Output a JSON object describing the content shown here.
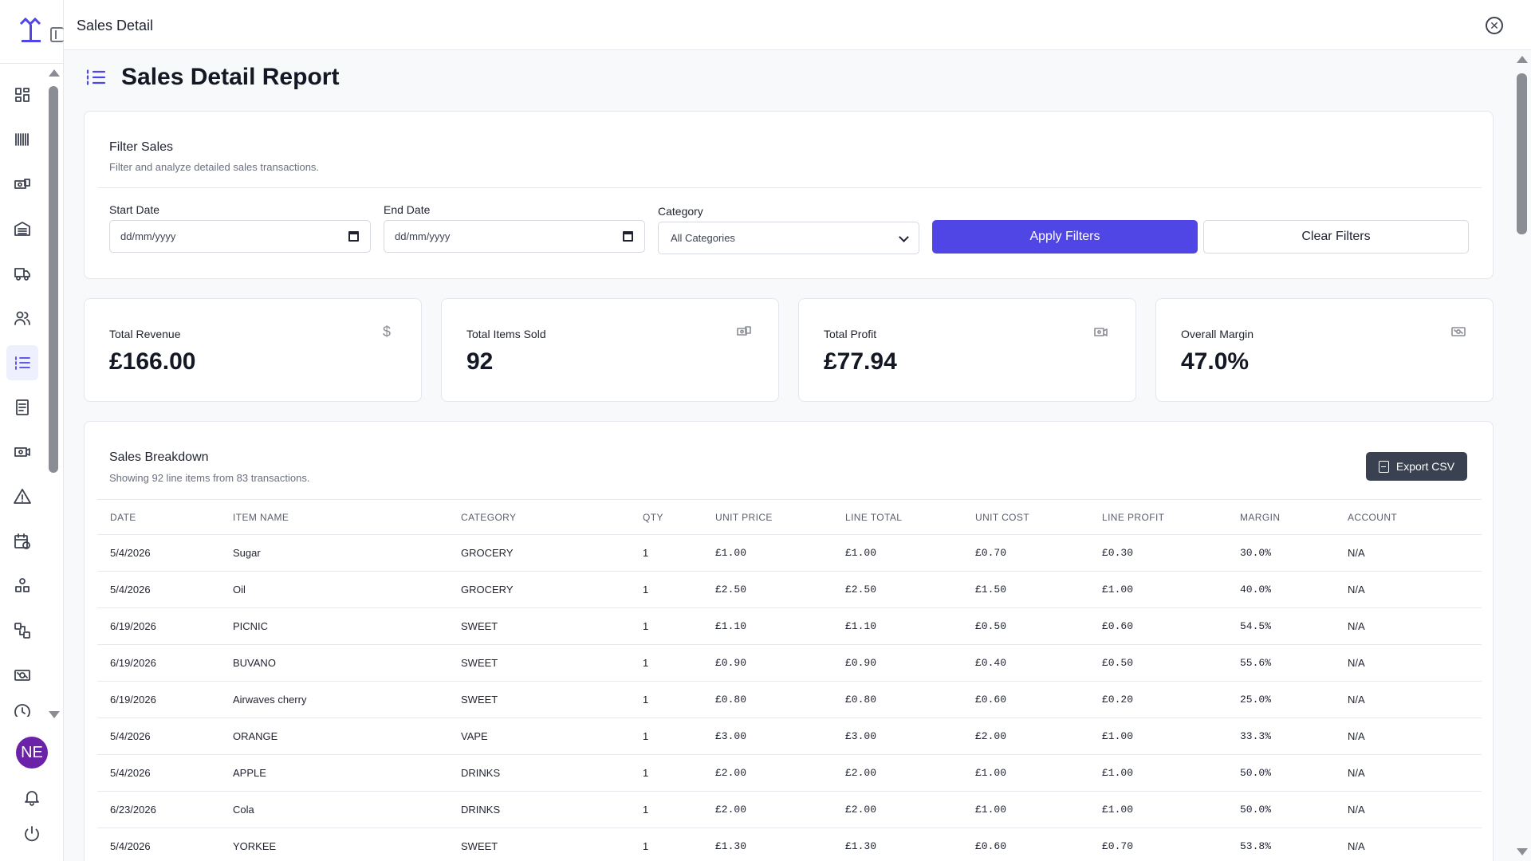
{
  "topbar": {
    "title": "Sales Detail"
  },
  "page": {
    "title": "Sales Detail Report"
  },
  "user": {
    "initials": "NE"
  },
  "filters": {
    "title": "Filter Sales",
    "subtitle": "Filter and analyze detailed sales transactions.",
    "start_label": "Start Date",
    "start_value": "dd/mm/yyyy",
    "end_label": "End Date",
    "end_value": "dd/mm/yyyy",
    "category_label": "Category",
    "category_value": "All Categories",
    "apply_label": "Apply Filters",
    "clear_label": "Clear Filters"
  },
  "stats": {
    "revenue_label": "Total Revenue",
    "revenue_value": "£166.00",
    "items_label": "Total Items Sold",
    "items_value": "92",
    "profit_label": "Total Profit",
    "profit_value": "£77.94",
    "margin_label": "Overall Margin",
    "margin_value": "47.0%"
  },
  "breakdown": {
    "title": "Sales Breakdown",
    "subtitle": "Showing 92 line items from 83 transactions.",
    "export_label": "Export CSV",
    "columns": [
      "DATE",
      "ITEM NAME",
      "CATEGORY",
      "QTY",
      "UNIT PRICE",
      "LINE TOTAL",
      "UNIT COST",
      "LINE PROFIT",
      "MARGIN",
      "ACCOUNT"
    ],
    "rows": [
      [
        "5/4/2026",
        "Sugar",
        "GROCERY",
        "1",
        "£1.00",
        "£1.00",
        "£0.70",
        "£0.30",
        "30.0%",
        "N/A"
      ],
      [
        "5/4/2026",
        "Oil",
        "GROCERY",
        "1",
        "£2.50",
        "£2.50",
        "£1.50",
        "£1.00",
        "40.0%",
        "N/A"
      ],
      [
        "6/19/2026",
        "PICNIC",
        "SWEET",
        "1",
        "£1.10",
        "£1.10",
        "£0.50",
        "£0.60",
        "54.5%",
        "N/A"
      ],
      [
        "6/19/2026",
        "BUVANO",
        "SWEET",
        "1",
        "£0.90",
        "£0.90",
        "£0.40",
        "£0.50",
        "55.6%",
        "N/A"
      ],
      [
        "6/19/2026",
        "Airwaves cherry",
        "SWEET",
        "1",
        "£0.80",
        "£0.80",
        "£0.60",
        "£0.20",
        "25.0%",
        "N/A"
      ],
      [
        "5/4/2026",
        "ORANGE",
        "VAPE",
        "1",
        "£3.00",
        "£3.00",
        "£2.00",
        "£1.00",
        "33.3%",
        "N/A"
      ],
      [
        "5/4/2026",
        "APPLE",
        "DRINKS",
        "1",
        "£2.00",
        "£2.00",
        "£1.00",
        "£1.00",
        "50.0%",
        "N/A"
      ],
      [
        "6/23/2026",
        "Cola",
        "DRINKS",
        "1",
        "£2.00",
        "£2.00",
        "£1.00",
        "£1.00",
        "50.0%",
        "N/A"
      ],
      [
        "5/4/2026",
        "YORKEE",
        "SWEET",
        "1",
        "£1.30",
        "£1.30",
        "£0.60",
        "£0.70",
        "53.8%",
        "N/A"
      ]
    ]
  },
  "colors": {
    "accent": "#4f46e5",
    "avatar": "#6b21a8",
    "export_button": "#3a4150"
  },
  "icons": {
    "sidebar": [
      "dashboard-icon",
      "barcode-icon",
      "products-icon",
      "inventory-icon",
      "delivery-truck-icon",
      "users-icon",
      "sales-list-icon",
      "report-icon",
      "money-icon",
      "alert-icon",
      "calendar-icon",
      "shapes-icon",
      "transfer-icon",
      "cash-icon",
      "history-icon"
    ]
  }
}
